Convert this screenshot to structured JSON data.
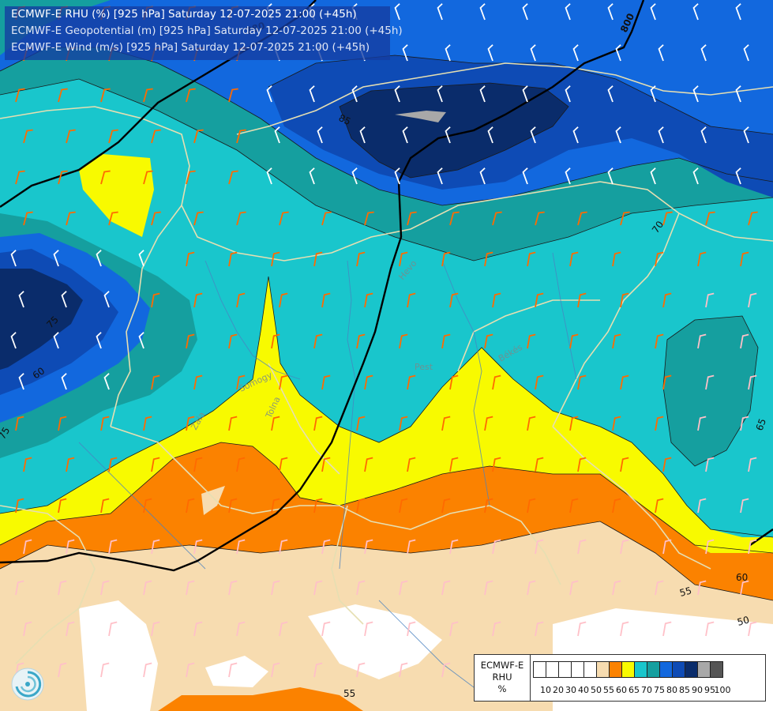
{
  "title": {
    "line1": "ECMWF-E RHU (%) [925 hPa] Saturday 12-07-2025 21:00 (+45h)",
    "line2": "ECMWF-E Geopotential (m) [925 hPa] Saturday 12-07-2025 21:00 (+45h)",
    "line3": "ECMWF-E Wind (m/s) [925 hPa] Saturday 12-07-2025 21:00 (+45h)"
  },
  "legend": {
    "model": "ECMWF-E",
    "variable": "RHU",
    "unit": "%",
    "swatches": [
      {
        "from": 0,
        "color": "#ffffff"
      },
      {
        "from": 10,
        "color": "#ffffff"
      },
      {
        "from": 20,
        "color": "#ffffff"
      },
      {
        "from": 30,
        "color": "#ffffff"
      },
      {
        "from": 40,
        "color": "#ffffff"
      },
      {
        "from": 50,
        "color": "#f7dcb0"
      },
      {
        "from": 55,
        "color": "#fb8200"
      },
      {
        "from": 60,
        "color": "#f8fa00"
      },
      {
        "from": 65,
        "color": "#19c6cc"
      },
      {
        "from": 70,
        "color": "#159f9f"
      },
      {
        "from": 75,
        "color": "#1268de"
      },
      {
        "from": 80,
        "color": "#0e4bb5"
      },
      {
        "from": 85,
        "color": "#0a2c6b"
      },
      {
        "from": 90,
        "color": "#a8a8a8"
      },
      {
        "from": 95,
        "color": "#555555"
      }
    ],
    "ticks": [
      "10",
      "20",
      "30",
      "40",
      "50",
      "55",
      "60",
      "65",
      "70",
      "75",
      "80",
      "85",
      "90",
      "95",
      "100"
    ]
  },
  "contour_labels": {
    "rhu": [
      "85",
      "70",
      "75",
      "60",
      "75",
      "65",
      "60",
      "55",
      "50",
      "55"
    ],
    "geopotential": [
      "780",
      "800"
    ]
  },
  "place_labels": [
    "Hevo",
    "Pest",
    "Békés",
    "Somogy",
    "Tolna",
    "Zala"
  ],
  "colors": {
    "white": "#ffffff",
    "beige": "#f7dcb0",
    "orange": "#fb8200",
    "yellow": "#f8fa00",
    "cyan": "#19c6cc",
    "teal": "#159f9f",
    "blue": "#1268de",
    "darkblue": "#0e4bb5",
    "navy": "#0a2c6b",
    "gray": "#a8a8a8",
    "wind_barb": "#ff6a00",
    "wind_barb_light": "#ffc0c8",
    "border": "#e6dfb2",
    "river": "#4a82c0",
    "geopotential_line": "#000000"
  }
}
